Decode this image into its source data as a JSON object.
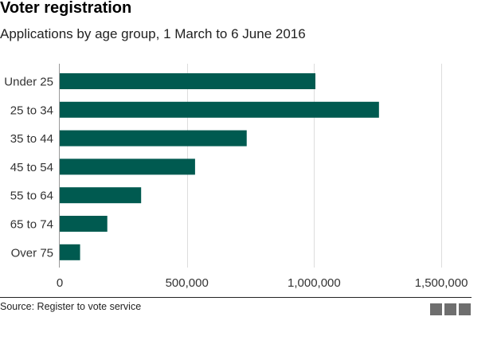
{
  "header": {
    "title": "Voter registration",
    "subtitle": "Applications by age group, 1 March to 6 June 2016"
  },
  "footer": {
    "source": "Source: Register to vote service",
    "logo_text": "BBC"
  },
  "chart_data": {
    "type": "bar",
    "orientation": "horizontal",
    "categories": [
      "Under 25",
      "25 to 34",
      "35 to 44",
      "45 to 54",
      "55 to 64",
      "65 to 74",
      "Over 75"
    ],
    "values": [
      1005000,
      1255000,
      735000,
      532000,
      320000,
      187000,
      80000
    ],
    "xlim": [
      0,
      1600000
    ],
    "xticks": [
      0,
      500000,
      1000000,
      1500000
    ],
    "xtick_labels": [
      "0",
      "500,000",
      "1,000,000",
      "1,500,000"
    ],
    "grid": true,
    "bar_color": "#005a50",
    "gridline_color": "#dddddd"
  }
}
